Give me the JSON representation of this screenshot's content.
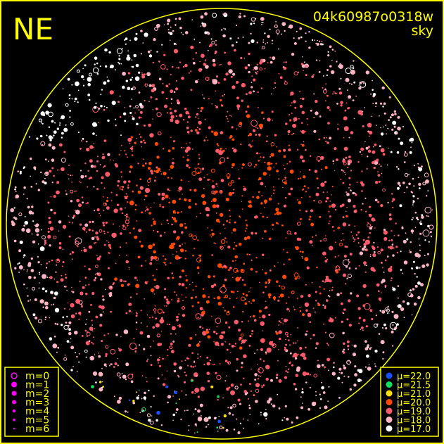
{
  "header": {
    "direction_label": "NE",
    "frame_id": "04k60987o0318w",
    "subtitle": "sky"
  },
  "colors": {
    "frame": "#ffff00",
    "background": "#000000",
    "legend_text": "#ffff00",
    "magnitude_marker": "#ff00ff"
  },
  "chart_data": {
    "type": "scatter",
    "title": "",
    "description_mode": "all-sky star field, points sized by magnitude m and colored by sky brightness mu",
    "size_legend": {
      "placement": "bottom-left",
      "entries": [
        {
          "label": "m=0",
          "style": "ring"
        },
        {
          "label": "m=1",
          "style": "filled"
        },
        {
          "label": "m=2",
          "style": "filled"
        },
        {
          "label": "m=3",
          "style": "filled"
        },
        {
          "label": "m=4",
          "style": "filled"
        },
        {
          "label": "m=5",
          "style": "filled"
        },
        {
          "label": "m=6",
          "style": "filled"
        }
      ]
    },
    "color_legend": {
      "placement": "bottom-right",
      "entries": [
        {
          "label": "μ=22.0",
          "color": "#1a50ff"
        },
        {
          "label": "μ=21.5",
          "color": "#10e060"
        },
        {
          "label": "μ=21.0",
          "color": "#ffe000"
        },
        {
          "label": "μ=20.0",
          "color": "#ff4a00"
        },
        {
          "label": "μ=19.0",
          "color": "#ff5a6a"
        },
        {
          "label": "μ=18.0",
          "color": "#ffb4c4"
        },
        {
          "label": "μ=17.0",
          "color": "#ffffff"
        }
      ]
    }
  }
}
